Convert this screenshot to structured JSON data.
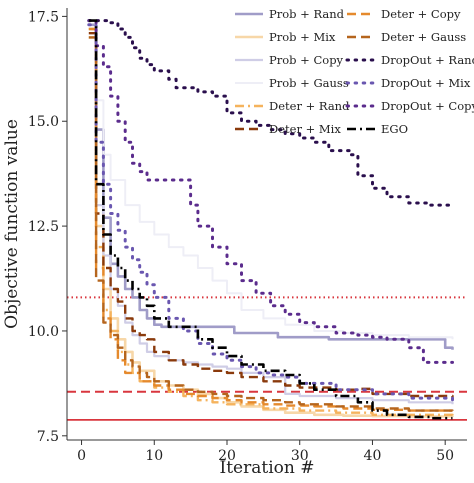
{
  "chart_data": {
    "type": "line",
    "title": "",
    "xlabel": "Iteration #",
    "ylabel": "Objective function value",
    "xlim": [
      -2,
      53
    ],
    "ylim": [
      7.4,
      17.7
    ],
    "xticks": [
      0,
      10,
      20,
      30,
      40,
      50
    ],
    "yticks": [
      7.5,
      10.0,
      12.5,
      15.0,
      17.5
    ],
    "ytick_labels": [
      "7.5",
      "10.0",
      "12.5",
      "15.0",
      "17.5"
    ],
    "grid": false,
    "legend": "top-right, two columns",
    "reference_lines": [
      {
        "y": 10.8,
        "color": "#d9363e",
        "style": "dotted"
      },
      {
        "y": 8.55,
        "color": "#d9363e",
        "style": "dashed"
      },
      {
        "y": 7.88,
        "color": "#d9363e",
        "style": "solid"
      }
    ],
    "series": [
      {
        "name": "Prob + Rand",
        "color": "#a09cc8",
        "style": "solid",
        "width": 2.6,
        "x": [
          1,
          2,
          3,
          4,
          5,
          6,
          7,
          8,
          9,
          10,
          11,
          12,
          20,
          21,
          26,
          27,
          33,
          34,
          50,
          51
        ],
        "y": [
          17.3,
          14.8,
          12.7,
          11.6,
          11.3,
          11.0,
          10.8,
          10.5,
          10.3,
          10.15,
          10.1,
          10.1,
          10.1,
          9.95,
          9.95,
          9.85,
          9.85,
          9.8,
          9.6,
          9.55
        ]
      },
      {
        "name": "Prob + Mix",
        "color": "#f7d7a8",
        "style": "solid",
        "width": 2.6,
        "x": [
          1,
          2,
          3,
          4,
          5,
          6,
          7,
          8,
          10,
          12,
          14,
          16,
          18,
          20,
          22,
          25,
          28,
          32,
          36,
          40,
          45,
          51
        ],
        "y": [
          17.0,
          12.5,
          11.0,
          10.3,
          9.8,
          9.5,
          9.25,
          9.05,
          8.8,
          8.7,
          8.6,
          8.5,
          8.4,
          8.3,
          8.2,
          8.12,
          8.05,
          8.0,
          7.98,
          7.97,
          7.96,
          7.95
        ]
      },
      {
        "name": "Prob + Copy",
        "color": "#cfcde6",
        "style": "solid",
        "width": 2.2,
        "x": [
          1,
          2,
          3,
          4,
          5,
          6,
          7,
          8,
          9,
          10,
          12,
          14,
          16,
          18,
          20,
          22,
          25,
          28,
          30,
          35,
          40,
          45,
          51
        ],
        "y": [
          17.2,
          13.0,
          11.8,
          11.0,
          10.6,
          10.2,
          9.9,
          9.7,
          9.5,
          9.4,
          9.3,
          9.25,
          9.2,
          9.15,
          9.1,
          9.0,
          8.9,
          8.5,
          8.45,
          8.4,
          8.35,
          8.3,
          8.25
        ]
      },
      {
        "name": "Prob + Gauss",
        "color": "#eeeef6",
        "style": "solid",
        "width": 2.0,
        "x": [
          1,
          2,
          3,
          4,
          6,
          8,
          10,
          12,
          14,
          16,
          18,
          20,
          22,
          25,
          28,
          32,
          36,
          40,
          45,
          51
        ],
        "y": [
          17.2,
          15.5,
          14.2,
          13.6,
          13.0,
          12.6,
          12.3,
          12.0,
          11.8,
          11.5,
          11.2,
          10.9,
          10.5,
          10.3,
          10.15,
          10.0,
          9.95,
          9.9,
          9.85,
          9.8
        ]
      },
      {
        "name": "Deter + Rand",
        "color": "#f5b35d",
        "style": "dashdot",
        "width": 2.4,
        "x": [
          1,
          2,
          3,
          4,
          5,
          6,
          7,
          8,
          10,
          12,
          14,
          16,
          18,
          20,
          25,
          30,
          35,
          40,
          45,
          51
        ],
        "y": [
          17.2,
          12.0,
          10.5,
          10.0,
          9.5,
          9.2,
          9.0,
          8.8,
          8.65,
          8.55,
          8.45,
          8.35,
          8.3,
          8.25,
          8.15,
          8.1,
          8.05,
          8.0,
          8.0,
          7.98
        ]
      },
      {
        "name": "Deter + Mix",
        "color": "#8a3a0c",
        "style": "dashed",
        "width": 2.4,
        "x": [
          1,
          2,
          3,
          4,
          5,
          6,
          7,
          8,
          9,
          10,
          12,
          14,
          16,
          18,
          20,
          22,
          25,
          28,
          30,
          35,
          38,
          40,
          45,
          51
        ],
        "y": [
          17.1,
          12.8,
          11.5,
          11.0,
          10.7,
          10.3,
          10.0,
          9.9,
          9.8,
          9.5,
          9.3,
          9.2,
          9.1,
          9.05,
          9.0,
          8.9,
          8.8,
          8.7,
          8.65,
          8.6,
          8.62,
          8.5,
          8.45,
          8.4
        ]
      },
      {
        "name": "Deter + Copy",
        "color": "#e58a2d",
        "style": "dashed",
        "width": 2.4,
        "x": [
          1,
          2,
          3,
          4,
          5,
          6,
          8,
          10,
          12,
          14,
          16,
          18,
          20,
          22,
          25,
          28,
          32,
          36,
          40,
          45,
          51
        ],
        "y": [
          17.2,
          11.5,
          10.3,
          9.8,
          9.3,
          9.0,
          8.8,
          8.7,
          8.6,
          8.5,
          8.45,
          8.4,
          8.35,
          8.3,
          8.25,
          8.22,
          8.2,
          8.15,
          8.12,
          8.1,
          8.1
        ]
      },
      {
        "name": "Deter + Gauss",
        "color": "#b5651d",
        "style": "dashed",
        "width": 2.4,
        "x": [
          1,
          2,
          3,
          4,
          5,
          6,
          7,
          8,
          9,
          10,
          12,
          14,
          16,
          18,
          20,
          22,
          25,
          28,
          30,
          35,
          40,
          45,
          51
        ],
        "y": [
          17.0,
          11.2,
          10.2,
          9.9,
          9.6,
          9.3,
          9.15,
          9.0,
          8.9,
          8.8,
          8.7,
          8.6,
          8.55,
          8.5,
          8.45,
          8.4,
          8.35,
          8.3,
          8.25,
          8.2,
          8.15,
          8.1,
          8.05
        ]
      },
      {
        "name": "DropOut + Rand",
        "color": "#2a0f4d",
        "style": "dotted",
        "width": 3.0,
        "x": [
          1,
          4,
          5,
          6,
          7,
          8,
          9,
          10,
          12,
          13,
          16,
          18,
          20,
          22,
          24,
          26,
          28,
          30,
          32,
          34,
          37,
          38,
          40,
          42,
          45,
          48,
          51
        ],
        "y": [
          17.4,
          17.35,
          17.2,
          17.0,
          16.75,
          16.5,
          16.35,
          16.2,
          16.0,
          15.8,
          15.7,
          15.6,
          15.2,
          15.0,
          14.9,
          14.8,
          14.7,
          14.6,
          14.5,
          14.3,
          14.2,
          13.7,
          13.4,
          13.2,
          13.05,
          13.0,
          13.0
        ]
      },
      {
        "name": "DropOut + Mix",
        "color": "#6a57b0",
        "style": "dotted",
        "width": 3.0,
        "x": [
          1,
          2,
          3,
          4,
          5,
          6,
          7,
          8,
          9,
          10,
          12,
          14,
          16,
          18,
          20,
          22,
          24,
          26,
          28,
          30,
          35,
          40,
          45,
          51
        ],
        "y": [
          17.3,
          14.5,
          13.5,
          12.8,
          12.4,
          12.0,
          11.7,
          11.4,
          11.1,
          10.8,
          10.3,
          10.0,
          9.7,
          9.45,
          9.3,
          9.15,
          9.0,
          8.95,
          8.9,
          8.75,
          8.6,
          8.5,
          8.4,
          8.3
        ]
      },
      {
        "name": "DropOut + Copy",
        "color": "#5b2c8d",
        "style": "dotted",
        "width": 3.0,
        "x": [
          1,
          2,
          3,
          4,
          5,
          6,
          7,
          8,
          9,
          10,
          12,
          14,
          15,
          16,
          18,
          20,
          22,
          24,
          26,
          28,
          30,
          32,
          35,
          38,
          40,
          42,
          45,
          47,
          51
        ],
        "y": [
          17.4,
          16.8,
          16.3,
          15.6,
          15.0,
          14.5,
          14.0,
          13.8,
          13.6,
          13.6,
          13.6,
          13.6,
          13.0,
          12.5,
          12.0,
          11.6,
          11.2,
          10.9,
          10.6,
          10.4,
          10.2,
          10.1,
          9.95,
          9.9,
          9.85,
          9.8,
          9.6,
          9.25,
          9.25
        ]
      },
      {
        "name": "EGO",
        "color": "#000000",
        "style": "dashdot",
        "width": 2.6,
        "x": [
          1,
          2,
          3,
          4,
          5,
          6,
          7,
          8,
          9,
          10,
          12,
          14,
          16,
          18,
          20,
          22,
          25,
          28,
          30,
          32,
          35,
          38,
          40,
          42,
          45,
          48,
          51
        ],
        "y": [
          17.4,
          13.5,
          12.3,
          11.8,
          11.5,
          11.2,
          11.0,
          10.8,
          10.6,
          10.3,
          10.1,
          10.1,
          9.8,
          9.6,
          9.4,
          9.2,
          9.05,
          8.95,
          8.75,
          8.6,
          8.45,
          8.3,
          8.1,
          8.0,
          7.95,
          7.92,
          7.92
        ]
      }
    ],
    "legend_order": [
      [
        "Prob + Rand",
        "Deter + Copy"
      ],
      [
        "Prob + Mix",
        "Deter + Gauss"
      ],
      [
        "Prob + Copy",
        "DropOut + Rand"
      ],
      [
        "Prob + Gauss",
        "DropOut + Mix"
      ],
      [
        "Deter + Rand",
        "DropOut + Copy"
      ],
      [
        "Deter + Mix",
        "EGO"
      ]
    ]
  }
}
